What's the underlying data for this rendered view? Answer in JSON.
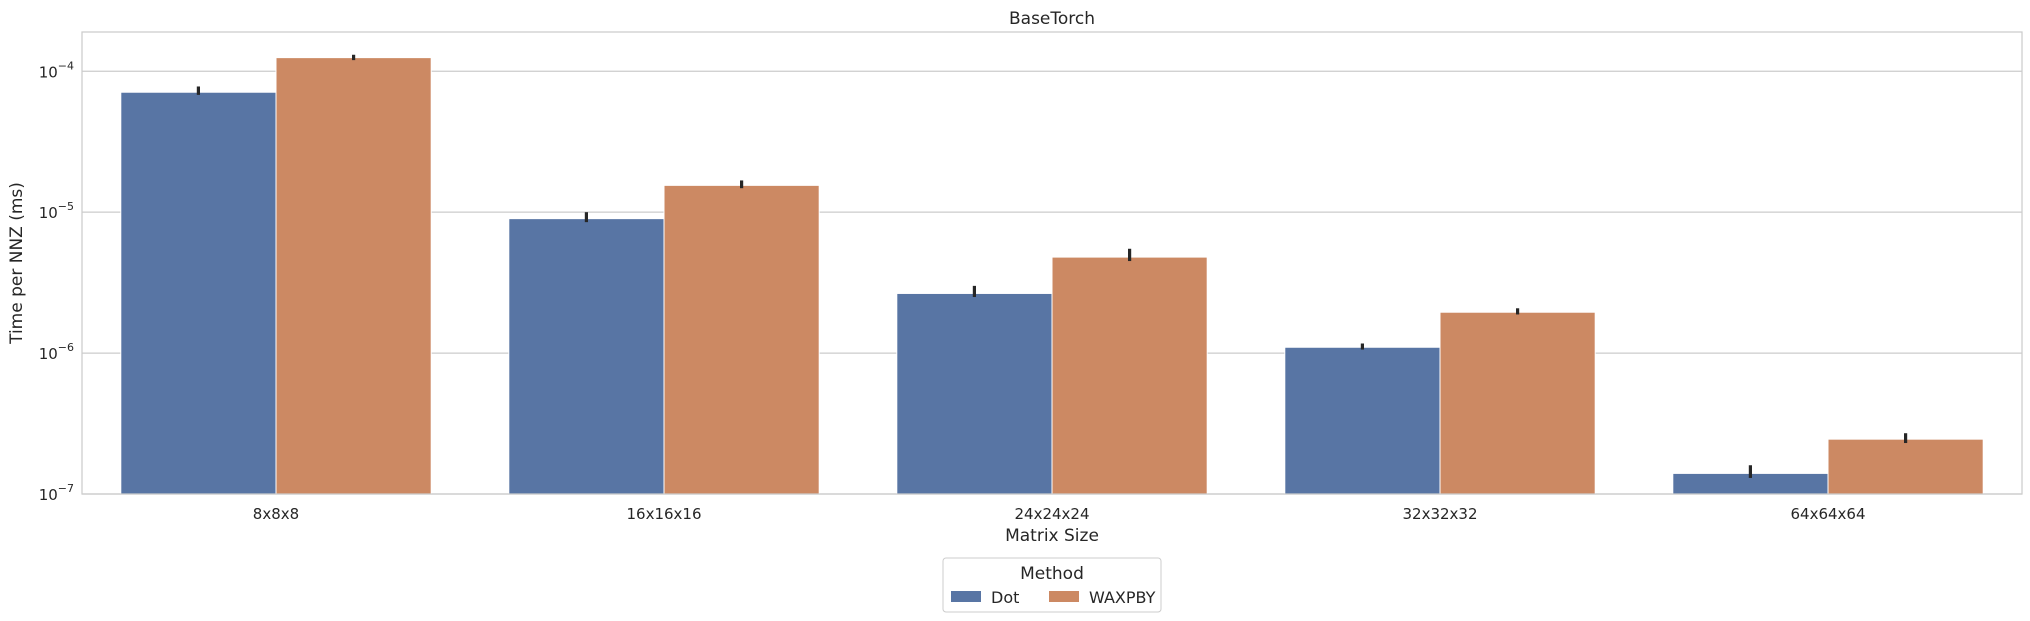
{
  "chart_data": {
    "type": "bar",
    "title": "BaseTorch",
    "xlabel": "Matrix Size",
    "ylabel": "Time per NNZ (ms)",
    "yscale": "log",
    "ylim": [
      1e-07,
      0.00019
    ],
    "yticks": [
      {
        "value": 1e-07,
        "base": "10",
        "exp": "−7"
      },
      {
        "value": 1e-06,
        "base": "10",
        "exp": "−6"
      },
      {
        "value": 1e-05,
        "base": "10",
        "exp": "−5"
      },
      {
        "value": 0.0001,
        "base": "10",
        "exp": "−4"
      }
    ],
    "grid": true,
    "categories": [
      "8x8x8",
      "16x16x16",
      "24x24x24",
      "32x32x32",
      "64x64x64"
    ],
    "series": [
      {
        "name": "Dot",
        "color": "#5875a4",
        "values": [
          7.1e-05,
          9e-06,
          2.65e-06,
          1.1e-06,
          1.4e-07
        ],
        "err_low": [
          6.8e-05,
          8.5e-06,
          2.5e-06,
          1.06e-06,
          1.3e-07
        ],
        "err_high": [
          7.8e-05,
          1e-05,
          3e-06,
          1.17e-06,
          1.6e-07
        ]
      },
      {
        "name": "WAXPBY",
        "color": "#cc8963",
        "values": [
          0.000125,
          1.55e-05,
          4.8e-06,
          1.95e-06,
          2.45e-07
        ],
        "err_low": [
          0.00012,
          1.48e-05,
          4.5e-06,
          1.88e-06,
          2.3e-07
        ],
        "err_high": [
          0.000131,
          1.68e-05,
          5.5e-06,
          2.08e-06,
          2.7e-07
        ]
      }
    ],
    "legend": {
      "title": "Method",
      "placement": "bottom-center",
      "columns": 2
    }
  }
}
